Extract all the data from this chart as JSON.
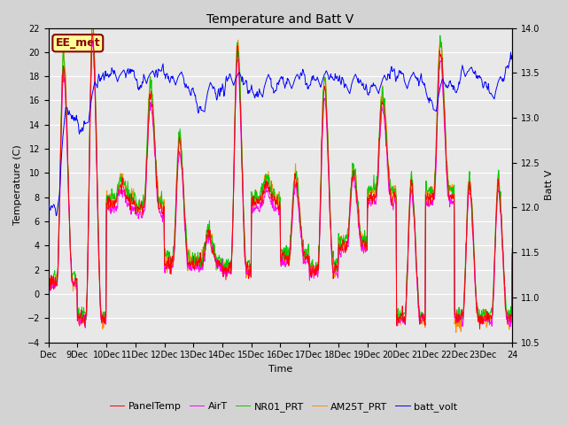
{
  "title": "Temperature and Batt V",
  "xlabel": "Time",
  "ylabel_left": "Temperature (C)",
  "ylabel_right": "Batt V",
  "annotation_text": "EE_met",
  "annotation_color": "#8B0000",
  "annotation_bg": "#FFFF99",
  "ylim_left": [
    -4,
    22
  ],
  "ylim_right": [
    10.5,
    14.0
  ],
  "yticks_left": [
    -4,
    -2,
    0,
    2,
    4,
    6,
    8,
    10,
    12,
    14,
    16,
    18,
    20,
    22
  ],
  "yticks_right_vals": [
    10.5,
    11.0,
    11.5,
    12.0,
    12.5,
    13.0,
    13.5,
    14.0
  ],
  "fig_bg_color": "#D3D3D3",
  "plot_bg_color": "#E8E8E8",
  "grid_color": "#FFFFFF",
  "series_colors": {
    "PanelTemp": "#FF0000",
    "AirT": "#FF00FF",
    "NR01_PRT": "#00CC00",
    "AM25T_PRT": "#FF8C00",
    "batt_volt": "#0000FF"
  },
  "xtick_labels": [
    "Dec",
    "9Dec",
    "10Dec",
    "11Dec",
    "12Dec",
    "13Dec",
    "14Dec",
    "15Dec",
    "16Dec",
    "17Dec",
    "18Dec",
    "19Dec",
    "20Dec",
    "21Dec",
    "22Dec",
    "23Dec",
    "24"
  ],
  "n_points": 960,
  "linewidth": 0.7,
  "title_fontsize": 10,
  "label_fontsize": 8,
  "tick_fontsize": 7,
  "legend_fontsize": 8
}
